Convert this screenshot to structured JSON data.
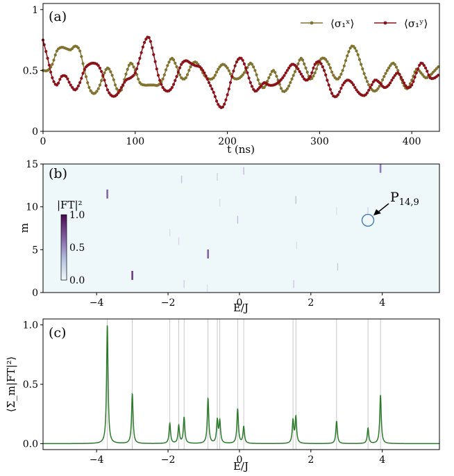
{
  "chart_data": [
    {
      "panel": "a",
      "type": "line",
      "panel_label": "(a)",
      "xlabel": "t (ns)",
      "ylabel": "",
      "xlim": [
        0,
        430
      ],
      "ylim": [
        0,
        1.05
      ],
      "xticks": [
        "0",
        "100",
        "200",
        "300",
        "400"
      ],
      "yticks": [
        "0",
        "0.5",
        "1"
      ],
      "legend_position": "top-right",
      "series": [
        {
          "name": "⟨σ₁ˣ⟩",
          "color": "#807330",
          "marker": "dot",
          "t": [
            0,
            5,
            10,
            15,
            20,
            25,
            30,
            35,
            40,
            45,
            50,
            55,
            60,
            65,
            70,
            75,
            80,
            85,
            90,
            95,
            100,
            105,
            110,
            115,
            120,
            125,
            130,
            135,
            140,
            145,
            150,
            155,
            160,
            165,
            170,
            175,
            180,
            185,
            190,
            195,
            200,
            205,
            210,
            215,
            220,
            225,
            230,
            235,
            240,
            245,
            250,
            255,
            260,
            265,
            270,
            275,
            280,
            285,
            290,
            295,
            300,
            305,
            310,
            315,
            320,
            325,
            330,
            335,
            340,
            345,
            350,
            355,
            360,
            365,
            370,
            375,
            380,
            385,
            390,
            395,
            400,
            405,
            410,
            415,
            420,
            425,
            430
          ],
          "values": [
            0.5,
            0.5,
            0.55,
            0.66,
            0.69,
            0.68,
            0.67,
            0.7,
            0.66,
            0.5,
            0.36,
            0.31,
            0.35,
            0.45,
            0.52,
            0.46,
            0.35,
            0.34,
            0.47,
            0.56,
            0.5,
            0.4,
            0.38,
            0.38,
            0.38,
            0.38,
            0.43,
            0.54,
            0.6,
            0.53,
            0.44,
            0.44,
            0.53,
            0.57,
            0.53,
            0.46,
            0.43,
            0.44,
            0.51,
            0.55,
            0.52,
            0.45,
            0.43,
            0.45,
            0.5,
            0.56,
            0.5,
            0.39,
            0.36,
            0.44,
            0.5,
            0.42,
            0.33,
            0.35,
            0.43,
            0.52,
            0.6,
            0.52,
            0.43,
            0.48,
            0.58,
            0.6,
            0.55,
            0.46,
            0.43,
            0.5,
            0.62,
            0.7,
            0.66,
            0.55,
            0.44,
            0.36,
            0.33,
            0.37,
            0.45,
            0.52,
            0.56,
            0.5,
            0.4,
            0.35,
            0.42,
            0.51,
            0.48,
            0.44,
            0.46,
            0.5,
            0.54
          ]
        },
        {
          "name": "⟨σ₁ʸ⟩",
          "color": "#8b1219",
          "marker": "dot",
          "t": [
            0,
            5,
            10,
            15,
            20,
            25,
            30,
            35,
            40,
            45,
            50,
            55,
            60,
            65,
            70,
            75,
            80,
            85,
            90,
            95,
            100,
            105,
            110,
            115,
            120,
            125,
            130,
            135,
            140,
            145,
            150,
            155,
            160,
            165,
            170,
            175,
            180,
            185,
            190,
            195,
            200,
            205,
            210,
            215,
            220,
            225,
            230,
            235,
            240,
            245,
            250,
            255,
            260,
            265,
            270,
            275,
            280,
            285,
            290,
            295,
            300,
            305,
            310,
            315,
            320,
            325,
            330,
            335,
            340,
            345,
            350,
            355,
            360,
            365,
            370,
            375,
            380,
            385,
            390,
            395,
            400,
            405,
            410,
            415,
            420,
            425,
            430
          ],
          "values": [
            0.75,
            0.6,
            0.44,
            0.38,
            0.45,
            0.45,
            0.38,
            0.34,
            0.4,
            0.51,
            0.55,
            0.56,
            0.54,
            0.46,
            0.34,
            0.29,
            0.3,
            0.36,
            0.42,
            0.44,
            0.48,
            0.6,
            0.73,
            0.77,
            0.63,
            0.46,
            0.36,
            0.33,
            0.36,
            0.45,
            0.55,
            0.58,
            0.56,
            0.54,
            0.53,
            0.48,
            0.4,
            0.32,
            0.22,
            0.2,
            0.3,
            0.45,
            0.57,
            0.6,
            0.52,
            0.4,
            0.33,
            0.36,
            0.4,
            0.38,
            0.38,
            0.4,
            0.44,
            0.5,
            0.55,
            0.53,
            0.47,
            0.42,
            0.45,
            0.55,
            0.57,
            0.5,
            0.38,
            0.29,
            0.3,
            0.38,
            0.42,
            0.4,
            0.34,
            0.3,
            0.3,
            0.36,
            0.42,
            0.4,
            0.36,
            0.38,
            0.44,
            0.48,
            0.42,
            0.36,
            0.38,
            0.48,
            0.56,
            0.52,
            0.44,
            0.44,
            0.47
          ]
        }
      ]
    },
    {
      "panel": "b",
      "type": "heatmap",
      "panel_label": "(b)",
      "xlabel": "E/J",
      "ylabel": "m",
      "xlim": [
        -5.5,
        5.6
      ],
      "ylim": [
        0,
        15
      ],
      "xticks": [
        "−4",
        "−2",
        "0",
        "2",
        "4"
      ],
      "yticks": [
        "0",
        "5",
        "10",
        "15"
      ],
      "background_color": "#eef7f9",
      "colorbar": {
        "label": "|FT|²",
        "ticks": [
          "1.0",
          "0.5",
          "0.0"
        ],
        "range": [
          0,
          1
        ],
        "low_color": "#f2f9fb",
        "high_color": "#4a0a4e"
      },
      "annotation": {
        "text": "P",
        "subscript": "14,9",
        "x": 3.6,
        "y": 8.5
      },
      "features": [
        {
          "x": -3.7,
          "m": 11.5,
          "intensity": 0.55
        },
        {
          "x": -3.0,
          "m": 2.0,
          "intensity": 0.75
        },
        {
          "x": -0.88,
          "m": 4.5,
          "intensity": 0.55
        },
        {
          "x": 3.95,
          "m": 14.5,
          "intensity": 0.45
        },
        {
          "x": -1.62,
          "m": 13.2,
          "intensity": 0.2
        },
        {
          "x": 0.12,
          "m": 14.2,
          "intensity": 0.22
        },
        {
          "x": -0.05,
          "m": 8.5,
          "intensity": 0.22
        },
        {
          "x": 1.58,
          "m": 10.8,
          "intensity": 0.22
        },
        {
          "x": 2.75,
          "m": 3.0,
          "intensity": 0.18
        },
        {
          "x": 1.52,
          "m": 1.0,
          "intensity": 0.18
        },
        {
          "x": -1.55,
          "m": 1.0,
          "intensity": 0.15
        },
        {
          "x": -0.62,
          "m": 13.5,
          "intensity": 0.15
        },
        {
          "x": -1.7,
          "m": 6.0,
          "intensity": 0.12
        },
        {
          "x": -1.95,
          "m": 7.0,
          "intensity": 0.1
        },
        {
          "x": -0.55,
          "m": 10.5,
          "intensity": 0.1
        },
        {
          "x": 1.6,
          "m": 5.5,
          "intensity": 0.1
        },
        {
          "x": 2.72,
          "m": 9.5,
          "intensity": 0.1
        },
        {
          "x": 3.6,
          "m": 9.5,
          "intensity": 0.14
        },
        {
          "x": -0.9,
          "m": 0.5,
          "intensity": 0.1
        }
      ]
    },
    {
      "panel": "c",
      "type": "line",
      "panel_label": "(c)",
      "xlabel": "E/J",
      "ylabel": "⟨Σ_m|FT|²⟩",
      "xlim": [
        -5.5,
        5.6
      ],
      "ylim": [
        -0.05,
        1.05
      ],
      "xticks": [
        "−4",
        "−2",
        "0",
        "2",
        "4"
      ],
      "yticks": [
        "0.0",
        "0.5",
        "1.0"
      ],
      "color": "#2a7a2a",
      "peaks": [
        {
          "x": -3.7,
          "height": 1.0
        },
        {
          "x": -3.0,
          "height": 0.42
        },
        {
          "x": -1.95,
          "height": 0.17
        },
        {
          "x": -1.7,
          "height": 0.15
        },
        {
          "x": -1.55,
          "height": 0.22
        },
        {
          "x": -0.88,
          "height": 0.38
        },
        {
          "x": -0.62,
          "height": 0.19
        },
        {
          "x": -0.55,
          "height": 0.18
        },
        {
          "x": -0.05,
          "height": 0.29
        },
        {
          "x": 0.12,
          "height": 0.14
        },
        {
          "x": 1.5,
          "height": 0.19
        },
        {
          "x": 1.58,
          "height": 0.22
        },
        {
          "x": 2.72,
          "height": 0.19
        },
        {
          "x": 3.6,
          "height": 0.13
        },
        {
          "x": 3.95,
          "height": 0.41
        }
      ],
      "guide_lines": [
        -3.7,
        -3.0,
        -1.95,
        -1.7,
        -1.55,
        -0.88,
        -0.62,
        -0.55,
        -0.05,
        0.12,
        1.5,
        1.58,
        2.72,
        3.6,
        3.95
      ]
    }
  ]
}
